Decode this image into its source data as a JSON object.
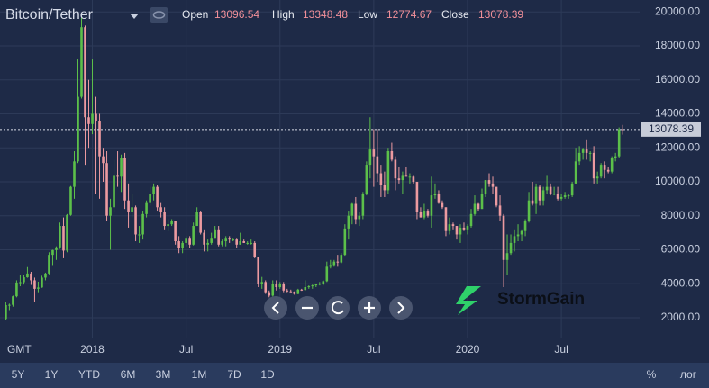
{
  "header": {
    "title": "Bitcoin/Tether",
    "ohlc_labels": [
      "Open",
      "High",
      "Low",
      "Close"
    ]
  },
  "chart_data": {
    "type": "candlestick",
    "up_color": "#5cc04a",
    "down_color": "#ec9aa0",
    "ylim": [
      780,
      20700
    ],
    "yticks": [
      {
        "value": 2000,
        "label": "2000.00"
      },
      {
        "value": 4000,
        "label": "4000.00"
      },
      {
        "value": 6000,
        "label": "6000.00"
      },
      {
        "value": 8000,
        "label": "8000.00"
      },
      {
        "value": 10000,
        "label": "10000.00"
      },
      {
        "value": 12000,
        "label": "12000.00"
      },
      {
        "value": 14000,
        "label": "14000.00"
      },
      {
        "value": 16000,
        "label": "16000.00"
      },
      {
        "value": 18000,
        "label": "18000.00"
      },
      {
        "value": 20000,
        "label": "20000.00"
      }
    ],
    "xlim": [
      -1.6,
      175.7
    ],
    "xticks": [
      {
        "value": 24,
        "label": "2018"
      },
      {
        "value": 50,
        "label": "Jul"
      },
      {
        "value": 76,
        "label": "2019"
      },
      {
        "value": 102,
        "label": "Jul"
      },
      {
        "value": 128,
        "label": "2020"
      },
      {
        "value": 154,
        "label": "Jul"
      }
    ],
    "timezone": "GMT",
    "grid": true,
    "candles": [
      [
        1930,
        2900,
        1840,
        2740
      ],
      [
        2740,
        2830,
        2450,
        2760
      ],
      [
        2760,
        3300,
        2650,
        3260
      ],
      [
        3260,
        4200,
        3200,
        4070
      ],
      [
        4070,
        4500,
        3850,
        4090
      ],
      [
        4090,
        4490,
        3950,
        4380
      ],
      [
        4380,
        4980,
        4350,
        4600
      ],
      [
        4600,
        4700,
        3930,
        4200
      ],
      [
        4200,
        4360,
        2950,
        3700
      ],
      [
        3700,
        4120,
        3500,
        3780
      ],
      [
        3780,
        4470,
        3760,
        4360
      ],
      [
        4360,
        4650,
        4200,
        4600
      ],
      [
        4600,
        5850,
        4550,
        5700
      ],
      [
        5700,
        6000,
        5100,
        5980
      ],
      [
        5980,
        6200,
        5400,
        6140
      ],
      [
        6140,
        7600,
        6050,
        7400
      ],
      [
        7400,
        7900,
        5500,
        5950
      ],
      [
        5950,
        8100,
        5850,
        8050
      ],
      [
        8050,
        9750,
        8000,
        9700
      ],
      [
        9700,
        11800,
        9000,
        11200
      ],
      [
        11200,
        17200,
        11100,
        15000
      ],
      [
        15000,
        19800,
        14900,
        19100
      ],
      [
        19100,
        19200,
        11000,
        13800
      ],
      [
        13800,
        16000,
        12000,
        13400
      ],
      [
        13400,
        17200,
        12800,
        14000
      ],
      [
        14000,
        15000,
        9300,
        13600
      ],
      [
        13600,
        14000,
        9000,
        11500
      ],
      [
        11500,
        12000,
        10000,
        11100
      ],
      [
        11100,
        11800,
        7700,
        8000
      ],
      [
        8000,
        9000,
        6000,
        8500
      ],
      [
        8500,
        11300,
        8200,
        10400
      ],
      [
        10400,
        11800,
        9700,
        10300
      ],
      [
        10300,
        11600,
        9400,
        11400
      ],
      [
        11400,
        11700,
        8400,
        8900
      ],
      [
        8900,
        9900,
        7300,
        8200
      ],
      [
        8200,
        9300,
        7900,
        8500
      ],
      [
        8500,
        8600,
        6500,
        6900
      ],
      [
        6900,
        7400,
        6400,
        6900
      ],
      [
        6900,
        8300,
        6600,
        8100
      ],
      [
        8100,
        8900,
        7900,
        8800
      ],
      [
        8800,
        9700,
        8600,
        9300
      ],
      [
        9300,
        9900,
        8900,
        9700
      ],
      [
        9700,
        9800,
        8300,
        8500
      ],
      [
        8500,
        8800,
        7900,
        8200
      ],
      [
        8200,
        8500,
        7200,
        7400
      ],
      [
        7400,
        7800,
        7100,
        7500
      ],
      [
        7500,
        7800,
        7400,
        7700
      ],
      [
        7700,
        7700,
        6300,
        6500
      ],
      [
        6500,
        6800,
        5800,
        6100
      ],
      [
        6100,
        6500,
        5800,
        6400
      ],
      [
        6400,
        6800,
        6200,
        6700
      ],
      [
        6700,
        6800,
        6100,
        6300
      ],
      [
        6300,
        7600,
        6250,
        7400
      ],
      [
        7400,
        8500,
        7400,
        8200
      ],
      [
        8200,
        8300,
        6900,
        7000
      ],
      [
        7000,
        7200,
        5900,
        6300
      ],
      [
        6300,
        6600,
        5900,
        6400
      ],
      [
        6400,
        7000,
        6300,
        6700
      ],
      [
        6700,
        7400,
        6700,
        7200
      ],
      [
        7200,
        7400,
        6200,
        6300
      ],
      [
        6300,
        6600,
        6200,
        6500
      ],
      [
        6500,
        6800,
        6200,
        6700
      ],
      [
        6700,
        6800,
        6400,
        6600
      ],
      [
        6600,
        6700,
        6500,
        6600
      ],
      [
        6600,
        6700,
        6100,
        6300
      ],
      [
        6300,
        7000,
        6300,
        6500
      ],
      [
        6500,
        6600,
        6400,
        6400
      ],
      [
        6400,
        6500,
        6300,
        6400
      ],
      [
        6400,
        6600,
        6300,
        6400
      ],
      [
        6400,
        6500,
        5500,
        5600
      ],
      [
        5600,
        5600,
        3800,
        4000
      ],
      [
        4000,
        4400,
        3700,
        4100
      ],
      [
        4100,
        4200,
        3400,
        3500
      ],
      [
        3500,
        3600,
        3200,
        3300
      ],
      [
        3300,
        4200,
        3250,
        4000
      ],
      [
        4000,
        4200,
        3600,
        3800
      ],
      [
        3800,
        4100,
        3700,
        4000
      ],
      [
        4000,
        4100,
        3500,
        3600
      ],
      [
        3600,
        3700,
        3500,
        3550
      ],
      [
        3550,
        3650,
        3500,
        3530
      ],
      [
        3530,
        3550,
        3350,
        3400
      ],
      [
        3400,
        3700,
        3380,
        3650
      ],
      [
        3650,
        3700,
        3580,
        3630
      ],
      [
        3630,
        4200,
        3600,
        3800
      ],
      [
        3800,
        3900,
        3700,
        3850
      ],
      [
        3850,
        3950,
        3700,
        3900
      ],
      [
        3900,
        4000,
        3800,
        3980
      ],
      [
        3980,
        4100,
        3900,
        4000
      ],
      [
        4000,
        4200,
        3900,
        4150
      ],
      [
        4150,
        5300,
        4100,
        5000
      ],
      [
        5000,
        5400,
        4900,
        5100
      ],
      [
        5100,
        5400,
        5000,
        5300
      ],
      [
        5300,
        5700,
        5000,
        5250
      ],
      [
        5250,
        5800,
        5200,
        5700
      ],
      [
        5700,
        7500,
        5650,
        7250
      ],
      [
        7250,
        8300,
        6600,
        8000
      ],
      [
        8000,
        8800,
        7500,
        8700
      ],
      [
        8700,
        9100,
        7500,
        7800
      ],
      [
        7800,
        8200,
        7400,
        8000
      ],
      [
        8000,
        9400,
        7800,
        9300
      ],
      [
        9300,
        11200,
        9200,
        11000
      ],
      [
        11000,
        13800,
        10200,
        11900
      ],
      [
        11900,
        13100,
        9700,
        11500
      ],
      [
        11500,
        13100,
        10000,
        10500
      ],
      [
        10500,
        11000,
        9100,
        9800
      ],
      [
        9800,
        10600,
        9100,
        9500
      ],
      [
        9500,
        12000,
        9300,
        11800
      ],
      [
        11800,
        12300,
        11200,
        11300
      ],
      [
        11300,
        11500,
        9500,
        10200
      ],
      [
        10200,
        10900,
        9900,
        10100
      ],
      [
        10100,
        10600,
        9300,
        10400
      ],
      [
        10400,
        10900,
        10300,
        10300
      ],
      [
        10300,
        10500,
        9900,
        10300
      ],
      [
        10300,
        10400,
        9900,
        10000
      ],
      [
        10000,
        10000,
        7800,
        8200
      ],
      [
        8200,
        8500,
        7900,
        7900
      ],
      [
        7900,
        8700,
        7800,
        8300
      ],
      [
        8300,
        8400,
        7900,
        8000
      ],
      [
        8000,
        10300,
        7300,
        9200
      ],
      [
        9200,
        9900,
        9000,
        9300
      ],
      [
        9300,
        9500,
        8700,
        8800
      ],
      [
        8800,
        8900,
        8400,
        8500
      ],
      [
        8500,
        8500,
        6800,
        7100
      ],
      [
        7100,
        7900,
        6900,
        7500
      ],
      [
        7500,
        7600,
        7200,
        7400
      ],
      [
        7400,
        7400,
        6600,
        6900
      ],
      [
        6900,
        7500,
        6400,
        7300
      ],
      [
        7300,
        7600,
        7100,
        7200
      ],
      [
        7200,
        7500,
        6900,
        7400
      ],
      [
        7400,
        8400,
        7300,
        8100
      ],
      [
        8100,
        9200,
        8000,
        8700
      ],
      [
        8700,
        8800,
        8300,
        8400
      ],
      [
        8400,
        9600,
        8400,
        9300
      ],
      [
        9300,
        10100,
        9100,
        10100
      ],
      [
        10100,
        10500,
        9700,
        9900
      ],
      [
        9900,
        10300,
        9300,
        9700
      ],
      [
        9700,
        9700,
        8500,
        8600
      ],
      [
        8600,
        9200,
        7700,
        8000
      ],
      [
        8000,
        8100,
        3800,
        5400
      ],
      [
        5400,
        6900,
        4500,
        5800
      ],
      [
        5800,
        6900,
        5700,
        6400
      ],
      [
        6400,
        7200,
        5900,
        6800
      ],
      [
        6800,
        7500,
        6500,
        6900
      ],
      [
        6900,
        7200,
        6500,
        7100
      ],
      [
        7100,
        7800,
        6800,
        7700
      ],
      [
        7700,
        9400,
        7600,
        8900
      ],
      [
        8900,
        10000,
        8600,
        8700
      ],
      [
        8700,
        9900,
        8100,
        9700
      ],
      [
        9700,
        9800,
        8600,
        8900
      ],
      [
        8900,
        9700,
        8600,
        9500
      ],
      [
        9500,
        10400,
        9300,
        9700
      ],
      [
        9700,
        9900,
        9200,
        9300
      ],
      [
        9300,
        9700,
        9200,
        9300
      ],
      [
        9300,
        9700,
        8900,
        9000
      ],
      [
        9000,
        9300,
        8900,
        9100
      ],
      [
        9100,
        9400,
        9000,
        9200
      ],
      [
        9200,
        9300,
        9000,
        9200
      ],
      [
        9200,
        10000,
        9100,
        9900
      ],
      [
        9900,
        12000,
        9900,
        11200
      ],
      [
        11200,
        12100,
        11000,
        11700
      ],
      [
        11700,
        12000,
        11300,
        11900
      ],
      [
        11900,
        12500,
        11300,
        11700
      ],
      [
        11700,
        11800,
        11200,
        11700
      ],
      [
        11700,
        12100,
        9900,
        10200
      ],
      [
        10200,
        10600,
        9900,
        10300
      ],
      [
        10300,
        11100,
        10200,
        11000
      ],
      [
        11000,
        11200,
        10200,
        10700
      ],
      [
        10700,
        10900,
        10500,
        10600
      ],
      [
        10600,
        11500,
        10500,
        11400
      ],
      [
        11400,
        11700,
        11200,
        11500
      ],
      [
        11500,
        13200,
        11400,
        13096.54
      ],
      [
        13096.54,
        13348.48,
        12774.67,
        13078.39
      ]
    ]
  },
  "toolbar": {
    "ranges": [
      "5Y",
      "1Y",
      "YTD",
      "6M",
      "3M",
      "1M",
      "7D",
      "1D"
    ],
    "percent": "%",
    "log": "лог"
  },
  "brand": "StormGain"
}
